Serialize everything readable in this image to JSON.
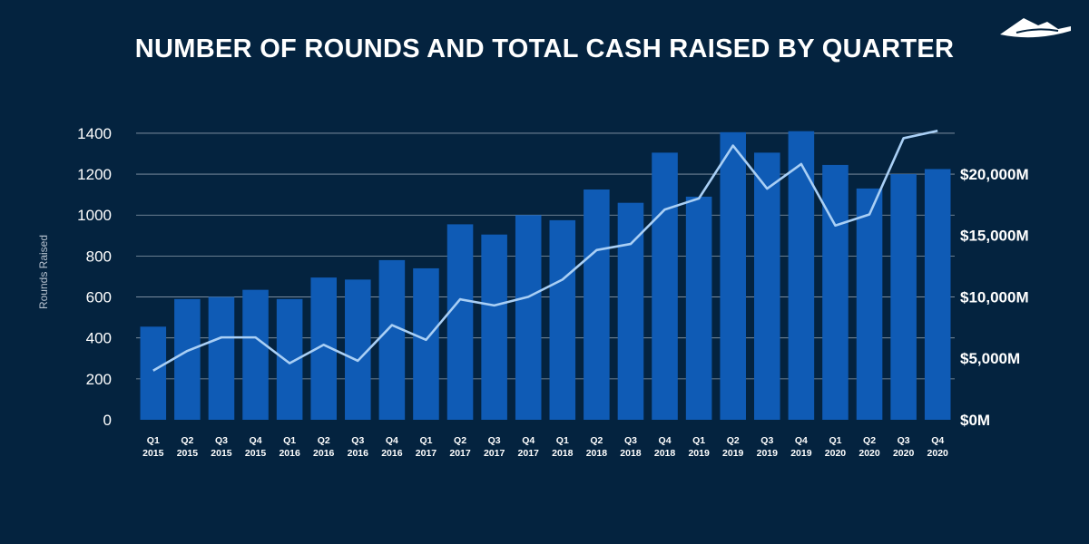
{
  "logo": {
    "icon": "mountain-logo-icon"
  },
  "chart_data": {
    "type": "bar",
    "title": "NUMBER OF ROUNDS AND TOTAL CASH RAISED BY QUARTER",
    "ylabel": "Rounds Raised",
    "y2label": "",
    "categories": [
      [
        "Q1",
        "2015"
      ],
      [
        "Q2",
        "2015"
      ],
      [
        "Q3",
        "2015"
      ],
      [
        "Q4",
        "2015"
      ],
      [
        "Q1",
        "2016"
      ],
      [
        "Q2",
        "2016"
      ],
      [
        "Q3",
        "2016"
      ],
      [
        "Q4",
        "2016"
      ],
      [
        "Q1",
        "2017"
      ],
      [
        "Q2",
        "2017"
      ],
      [
        "Q3",
        "2017"
      ],
      [
        "Q4",
        "2017"
      ],
      [
        "Q1",
        "2018"
      ],
      [
        "Q2",
        "2018"
      ],
      [
        "Q3",
        "2018"
      ],
      [
        "Q4",
        "2018"
      ],
      [
        "Q1",
        "2019"
      ],
      [
        "Q2",
        "2019"
      ],
      [
        "Q3",
        "2019"
      ],
      [
        "Q4",
        "2019"
      ],
      [
        "Q1",
        "2020"
      ],
      [
        "Q2",
        "2020"
      ],
      [
        "Q3",
        "2020"
      ],
      [
        "Q4",
        "2020"
      ]
    ],
    "ylim": [
      0,
      1400
    ],
    "yticks": [
      0,
      200,
      400,
      600,
      800,
      1000,
      1200,
      1400
    ],
    "y2lim": [
      0,
      23300
    ],
    "y2ticks": [
      0,
      5000,
      10000,
      15000,
      20000
    ],
    "y2tick_labels": [
      "$0M",
      "$5,000M",
      "$10,000M",
      "$15,000M",
      "$20,000M"
    ],
    "grid": true,
    "series": [
      {
        "type": "bar",
        "axis": "left",
        "color": "#0f5bb5",
        "values": [
          455,
          590,
          600,
          635,
          590,
          695,
          685,
          780,
          740,
          955,
          905,
          1000,
          975,
          1125,
          1060,
          1305,
          1090,
          1405,
          1305,
          1410,
          1245,
          1130,
          1200,
          1225
        ]
      },
      {
        "type": "line",
        "axis": "right",
        "color": "#a9cff5",
        "values": [
          4000,
          5600,
          6700,
          6700,
          4600,
          6100,
          4800,
          7700,
          6500,
          9800,
          9300,
          10000,
          11400,
          13800,
          14300,
          17100,
          18000,
          22300,
          18800,
          20800,
          15800,
          16700,
          22900,
          23500
        ]
      }
    ]
  }
}
